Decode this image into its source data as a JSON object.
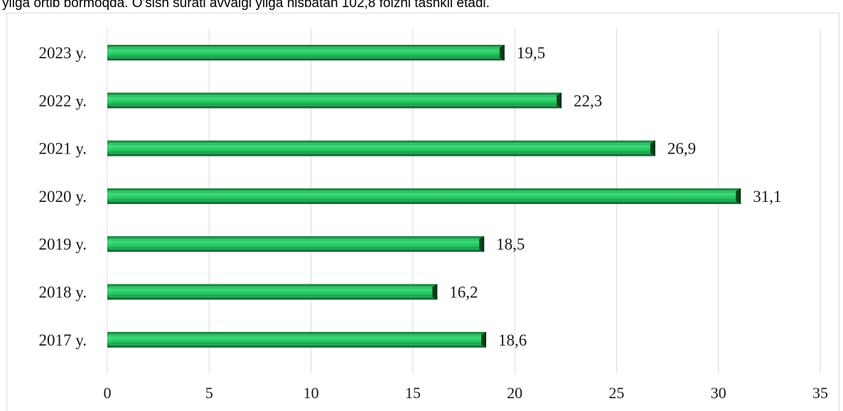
{
  "header_text": "yilga ortib bormoqda. O'sish surati avvalgi yilga nisbatan 102,8 foizni tashkil etadi.",
  "colors": {
    "bar_light": "#3ddc7a",
    "bar_mid": "#12a84a",
    "bar_dark": "#0a5e28",
    "grid": "#d9d9d9"
  },
  "chart_data": {
    "type": "bar",
    "orientation": "horizontal",
    "categories": [
      "2023 y.",
      "2022 y.",
      "2021 y.",
      "2020 y.",
      "2019 y.",
      "2018 y.",
      "2017 y."
    ],
    "values": [
      19.5,
      22.3,
      26.9,
      31.1,
      18.5,
      16.2,
      18.6
    ],
    "value_labels": [
      "19,5",
      "22,3",
      "26,9",
      "31,1",
      "18,5",
      "16,2",
      "18,6"
    ],
    "x_ticks": [
      0,
      5,
      10,
      15,
      20,
      25,
      30,
      35
    ],
    "xlim": [
      0,
      35
    ],
    "grid": true,
    "legend": "none"
  }
}
